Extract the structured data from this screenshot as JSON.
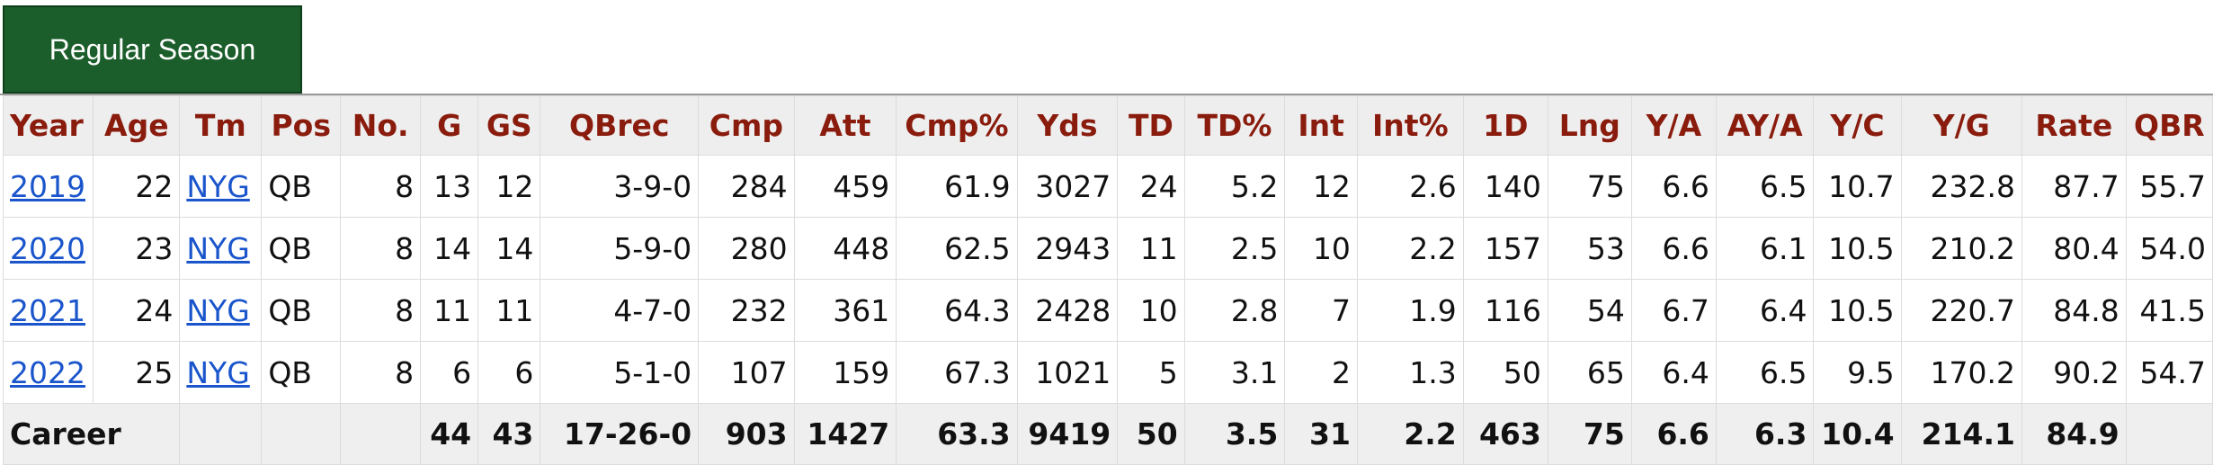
{
  "tab_label": "Regular Season",
  "columns": [
    "Year",
    "Age",
    "Tm",
    "Pos",
    "No.",
    "G",
    "GS",
    "QBrec",
    "Cmp",
    "Att",
    "Cmp%",
    "Yds",
    "TD",
    "TD%",
    "Int",
    "Int%",
    "1D",
    "Lng",
    "Y/A",
    "AY/A",
    "Y/C",
    "Y/G",
    "Rate",
    "QBR"
  ],
  "rows": [
    [
      "2019",
      "22",
      "NYG",
      "QB",
      "8",
      "13",
      "12",
      "3-9-0",
      "284",
      "459",
      "61.9",
      "3027",
      "24",
      "5.2",
      "12",
      "2.6",
      "140",
      "75",
      "6.6",
      "6.5",
      "10.7",
      "232.8",
      "87.7",
      "55.7"
    ],
    [
      "2020",
      "23",
      "NYG",
      "QB",
      "8",
      "14",
      "14",
      "5-9-0",
      "280",
      "448",
      "62.5",
      "2943",
      "11",
      "2.5",
      "10",
      "2.2",
      "157",
      "53",
      "6.6",
      "6.1",
      "10.5",
      "210.2",
      "80.4",
      "54.0"
    ],
    [
      "2021",
      "24",
      "NYG",
      "QB",
      "8",
      "11",
      "11",
      "4-7-0",
      "232",
      "361",
      "64.3",
      "2428",
      "10",
      "2.8",
      "7",
      "1.9",
      "116",
      "54",
      "6.7",
      "6.4",
      "10.5",
      "220.7",
      "84.8",
      "41.5"
    ],
    [
      "2022",
      "25",
      "NYG",
      "QB",
      "8",
      "6",
      "6",
      "5-1-0",
      "107",
      "159",
      "67.3",
      "1021",
      "5",
      "3.1",
      "2",
      "1.3",
      "50",
      "65",
      "6.4",
      "6.5",
      "9.5",
      "170.2",
      "90.2",
      "54.7"
    ]
  ],
  "career": [
    "Career",
    "",
    "",
    "",
    "",
    "44",
    "43",
    "17-26-0",
    "903",
    "1427",
    "63.3",
    "9419",
    "50",
    "3.5",
    "31",
    "2.2",
    "463",
    "75",
    "6.6",
    "6.3",
    "10.4",
    "214.1",
    "84.9",
    ""
  ],
  "colors": {
    "header_text": "#8a1c0e",
    "link": "#1a55cc",
    "tab_bg": "#1b5e2b"
  }
}
